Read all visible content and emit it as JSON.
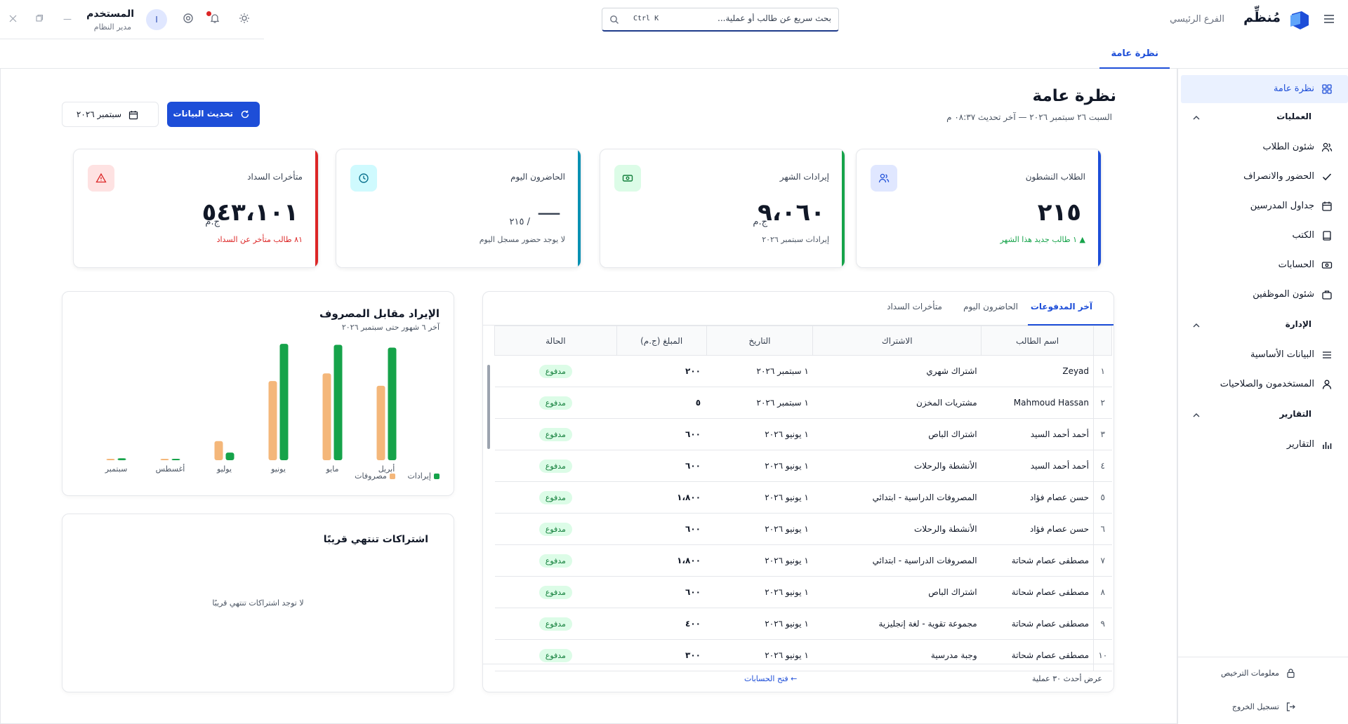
{
  "app": {
    "brand": "مُنظِّم",
    "branch": "الفرع الرئيسي",
    "search_placeholder": "بحث سريع عن طالب أو عملية...",
    "search_shortcut": "Ctrl K",
    "user_name": "المستخدم",
    "user_role": "مدير النظام",
    "avatar_letter": "ا"
  },
  "page_tab": "نظرة عامة",
  "sidebar": {
    "items": [
      {
        "label": "نظرة عامة",
        "icon": "grid-icon",
        "active": true
      },
      {
        "section": "العمليات"
      },
      {
        "label": "شئون الطلاب",
        "icon": "users-icon"
      },
      {
        "label": "الحضور والانصراف",
        "icon": "check-icon"
      },
      {
        "label": "جداول المدرسين",
        "icon": "calendar-icon"
      },
      {
        "label": "الكتب",
        "icon": "book-icon"
      },
      {
        "label": "الحسابات",
        "icon": "cash-icon"
      },
      {
        "label": "شئون الموظفين",
        "icon": "briefcase-icon"
      },
      {
        "section": "الإدارة"
      },
      {
        "label": "البيانات الأساسية",
        "icon": "list-icon"
      },
      {
        "label": "المستخدمون والصلاحيات",
        "icon": "user-icon"
      },
      {
        "section": "التقارير"
      },
      {
        "label": "التقارير",
        "icon": "bar-chart-icon"
      }
    ],
    "footer": {
      "license": "معلومات الترخيص",
      "logout": "تسجيل الخروج"
    }
  },
  "header": {
    "title": "نظرة عامة",
    "subtitle": "السبت ٢٦ سبتمبر ٢٠٢٦ — آخر تحديث ٠٨:٣٧ م",
    "refresh_label": "تحديث البيانات",
    "month_label": "سبتمبر ٢٠٢٦"
  },
  "stats": [
    {
      "title": "الطلاب النشطون",
      "value": "٢١٥",
      "unit": "",
      "note": "▲ ١ طالب جديد هذا الشهر",
      "color": "#1d4ed8",
      "note_color": "#16a34a",
      "icon": "users-icon",
      "icon_bg": "#e0e7ff",
      "icon_color": "#1d4ed8"
    },
    {
      "title": "إيرادات الشهر",
      "value": "٩،٠٦٠",
      "unit": "ج.م",
      "note": "إيرادات سبتمبر ٢٠٢٦",
      "color": "#16a34a",
      "note_color": "#4b5563",
      "icon": "cash-icon",
      "icon_bg": "#dcfce7",
      "icon_color": "#15803d"
    },
    {
      "title": "الحاضرون اليوم",
      "value": "—",
      "unit": "/ ٢١٥",
      "note": "لا يوجد حضور مسجل اليوم",
      "color": "#0891b2",
      "note_color": "#4b5563",
      "icon": "clock-icon",
      "icon_bg": "#cffafe",
      "icon_color": "#0e7490"
    },
    {
      "title": "متأخرات السداد",
      "value": "٥٤٣،١٠١",
      "unit": "ج.م",
      "note": "٨١ طالب متأخر عن السداد",
      "color": "#dc2626",
      "note_color": "#dc2626",
      "icon": "alert-icon",
      "icon_bg": "#fee2e2",
      "icon_color": "#dc2626"
    }
  ],
  "payments": {
    "tabs": [
      "آخر المدفوعات",
      "الحاضرون اليوم",
      "متأخرات السداد"
    ],
    "columns": [
      "اسم الطالب",
      "الاشتراك",
      "التاريخ",
      "المبلغ (ج.م)",
      "الحالة"
    ],
    "rows": [
      {
        "idx": "١",
        "name": "Zeyad",
        "sub": "اشتراك شهري",
        "date": "١ سبتمبر ٢٠٢٦",
        "amount": "٢٠٠",
        "status": "مدفوع"
      },
      {
        "idx": "٢",
        "name": "Mahmoud Hassan",
        "sub": "مشتريات المخزن",
        "date": "١ سبتمبر ٢٠٢٦",
        "amount": "٥",
        "status": "مدفوع"
      },
      {
        "idx": "٣",
        "name": "أحمد أحمد السيد",
        "sub": "اشتراك الباص",
        "date": "١ يونيو ٢٠٢٦",
        "amount": "٦٠٠",
        "status": "مدفوع"
      },
      {
        "idx": "٤",
        "name": "أحمد أحمد السيد",
        "sub": "الأنشطة والرحلات",
        "date": "١ يونيو ٢٠٢٦",
        "amount": "٦٠٠",
        "status": "مدفوع"
      },
      {
        "idx": "٥",
        "name": "حسن عصام فؤاد",
        "sub": "المصروفات الدراسية - ابتدائي",
        "date": "١ يونيو ٢٠٢٦",
        "amount": "١،٨٠٠",
        "status": "مدفوع"
      },
      {
        "idx": "٦",
        "name": "حسن عصام فؤاد",
        "sub": "الأنشطة والرحلات",
        "date": "١ يونيو ٢٠٢٦",
        "amount": "٦٠٠",
        "status": "مدفوع"
      },
      {
        "idx": "٧",
        "name": "مصطفى عصام شحاتة",
        "sub": "المصروفات الدراسية - ابتدائي",
        "date": "١ يونيو ٢٠٢٦",
        "amount": "١،٨٠٠",
        "status": "مدفوع"
      },
      {
        "idx": "٨",
        "name": "مصطفى عصام شحاتة",
        "sub": "اشتراك الباص",
        "date": "١ يونيو ٢٠٢٦",
        "amount": "٦٠٠",
        "status": "مدفوع"
      },
      {
        "idx": "٩",
        "name": "مصطفى عصام شحاتة",
        "sub": "مجموعة تقوية - لغة إنجليزية",
        "date": "١ يونيو ٢٠٢٦",
        "amount": "٤٠٠",
        "status": "مدفوع"
      },
      {
        "idx": "١٠",
        "name": "مصطفى عصام شحاتة",
        "sub": "وجبة مدرسية",
        "date": "١ يونيو ٢٠٢٦",
        "amount": "٣٠٠",
        "status": "مدفوع"
      }
    ],
    "footer_count": "عرض أحدث ٣٠ عملية",
    "footer_link": "← فتح الحسابات"
  },
  "revenue_chart": {
    "title": "الإيراد مقابل المصروف",
    "subtitle": "آخر ٦ شهور حتى سبتمبر ٢٠٢٦",
    "chart_data": {
      "type": "bar",
      "categories": [
        "أبريل",
        "مايو",
        "يونيو",
        "يوليو",
        "أغسطس",
        "سبتمبر"
      ],
      "series": [
        {
          "name": "إيرادات",
          "color": "#16a34a",
          "values": [
            118,
            121,
            122,
            8,
            1,
            2
          ]
        },
        {
          "name": "مصروفات",
          "color": "#f4b77a",
          "values": [
            78,
            91,
            83,
            20,
            1,
            1
          ]
        }
      ],
      "ylim": [
        0,
        125
      ],
      "legend": "bottom-right"
    }
  },
  "subs_panel": {
    "title": "اشتراكات تنتهي قريبًا",
    "empty": "لا توجد اشتراكات تنتهي قريبًا"
  }
}
